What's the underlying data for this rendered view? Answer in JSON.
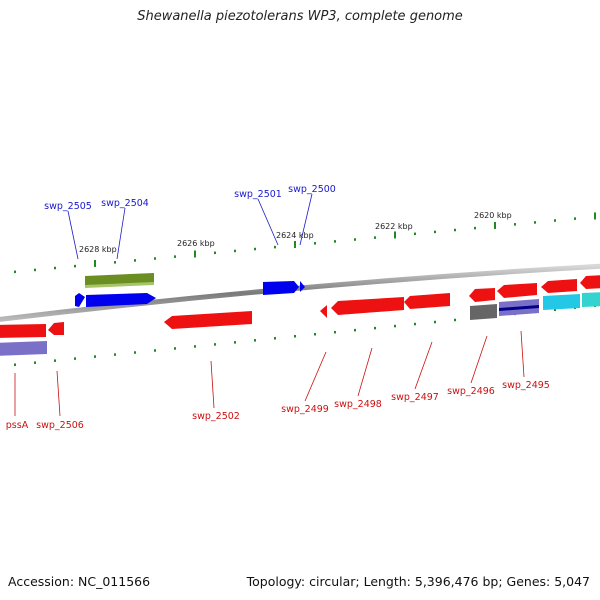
{
  "title": "Shewanella piezotolerans WP3, complete genome",
  "footer": {
    "accession": "Accession: NC_011566",
    "summary": "Topology: circular; Length: 5,396,476 bp; Genes: 5,047"
  },
  "colors": {
    "forward_gene": "#0000ee",
    "reverse_gene": "#ee1111",
    "forward_label": "#1a1acc",
    "reverse_label": "#cc1111",
    "tick": "#228822",
    "backbone": "#888888",
    "olive_feature": "#6b8e23",
    "purple_feature": "#7a70c8",
    "gray_feature": "#666666",
    "cyan_feature": "#22c8e6",
    "teal_feature": "#33d4d0"
  },
  "scale_labels": [
    "2628 kbp",
    "2626 kbp",
    "2624 kbp",
    "2622 kbp",
    "2620 kbp"
  ],
  "forward_genes": [
    "swp_2505",
    "swp_2504",
    "swp_2501",
    "swp_2500"
  ],
  "reverse_genes": [
    "pssA",
    "swp_2506",
    "swp_2502",
    "swp_2499",
    "swp_2498",
    "swp_2497",
    "swp_2496",
    "swp_2495"
  ]
}
